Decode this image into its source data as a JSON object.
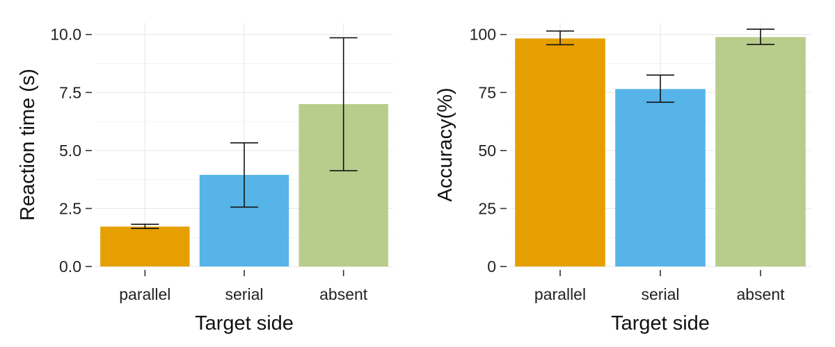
{
  "chart_data": [
    {
      "type": "bar",
      "categories": [
        "parallel",
        "serial",
        "absent"
      ],
      "values": [
        1.72,
        3.95,
        7.0
      ],
      "error_low": [
        1.64,
        2.56,
        4.13
      ],
      "error_high": [
        1.82,
        5.33,
        9.86
      ],
      "xlabel": "Target side",
      "ylabel": "Reaction time (s)",
      "ylim": [
        0,
        10.5
      ],
      "yticks": [
        0,
        2.5,
        5,
        7.5,
        10
      ],
      "ytick_labels": [
        "0.0",
        "2.5",
        "5.0",
        "7.5",
        "10.0"
      ],
      "grid": true,
      "colors": [
        "#E69F00",
        "#56B4E9",
        "#B8CC8C"
      ]
    },
    {
      "type": "bar",
      "categories": [
        "parallel",
        "serial",
        "absent"
      ],
      "values": [
        98.3,
        76.5,
        98.9
      ],
      "error_low": [
        95.6,
        70.8,
        95.7
      ],
      "error_high": [
        101.5,
        82.5,
        102.3
      ],
      "xlabel": "Target side",
      "ylabel": "Accuracy(%)",
      "ylim": [
        0,
        105
      ],
      "yticks": [
        0,
        25,
        50,
        75,
        100
      ],
      "ytick_labels": [
        "0",
        "25",
        "50",
        "75",
        "100"
      ],
      "grid": true,
      "colors": [
        "#E69F00",
        "#56B4E9",
        "#B8CC8C"
      ]
    }
  ]
}
